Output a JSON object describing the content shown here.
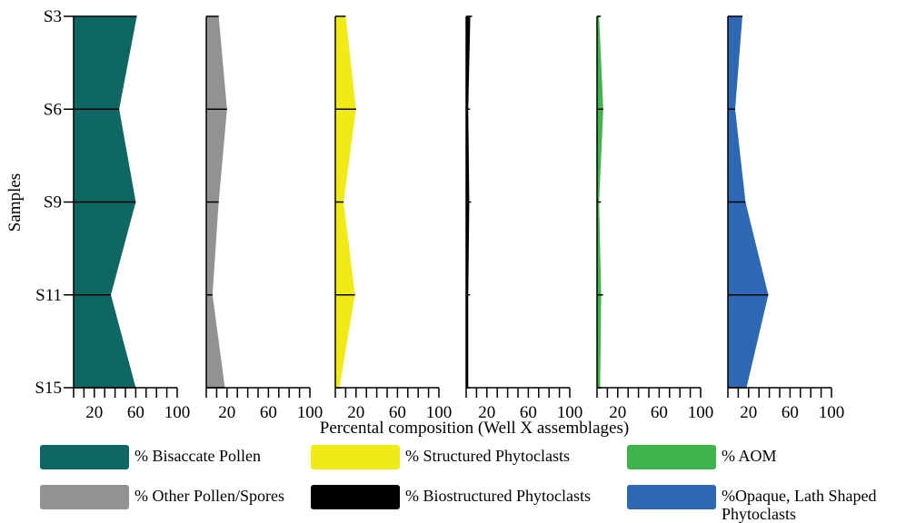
{
  "chart_data": {
    "type": "area",
    "orientation": "horizontal-stratigraphic",
    "ylabel": "Samples",
    "xlabel": "Percental composition (Well X assemblages)",
    "samples": [
      "S3",
      "S6",
      "S9",
      "S11",
      "S15"
    ],
    "xlim": [
      0,
      100
    ],
    "x_ticks": [
      "20",
      "60",
      "100"
    ],
    "series": [
      {
        "name": "% Bisaccate Pollen",
        "color": "#0f6763",
        "values": [
          61,
          44,
          60,
          36,
          60
        ]
      },
      {
        "name": "% Other Pollen/Spores",
        "color": "#929292",
        "values": [
          12,
          20,
          12,
          6,
          18
        ]
      },
      {
        "name": "% Structured Phytoclasts",
        "color": "#f2ea15",
        "values": [
          10,
          20,
          8,
          19,
          4
        ]
      },
      {
        "name": "% Biostructured Phytoclasts",
        "color": "#000000",
        "values": [
          4,
          2,
          3,
          2,
          2
        ]
      },
      {
        "name": "% AOM",
        "color": "#3db54a",
        "values": [
          2,
          6,
          2,
          4,
          3
        ]
      },
      {
        "name": "%Opaque, Lath Shaped Phytoclasts",
        "color": "#2d68b5",
        "values": [
          14,
          7,
          17,
          39,
          18
        ]
      }
    ]
  }
}
